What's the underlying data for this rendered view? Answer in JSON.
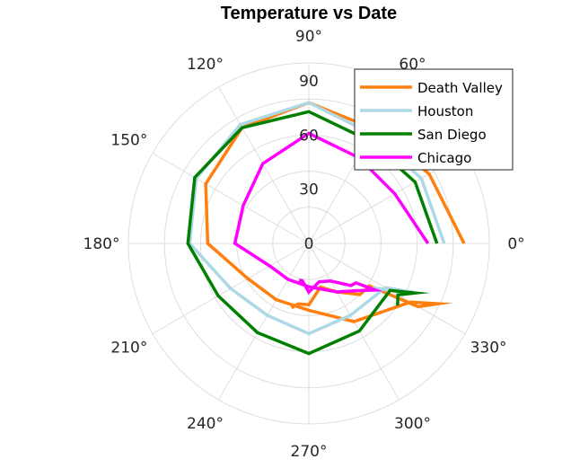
{
  "chart_data": {
    "type": "line",
    "subtype": "polar",
    "title": "Temperature vs Date",
    "r_range": [
      0,
      100
    ],
    "r_ticks": [
      "0",
      "30",
      "60",
      "90"
    ],
    "theta_ticks": [
      "0°",
      "30°",
      "60°",
      "90°",
      "120°",
      "150°",
      "180°",
      "210°",
      "240°",
      "270°",
      "300°",
      "330°"
    ],
    "theta_unit": "degrees",
    "grid": true,
    "legend_position": "top-right",
    "series": [
      {
        "name": "Death Valley",
        "color": "#ff7f0e",
        "points": [
          [
            0,
            86
          ],
          [
            30,
            77
          ],
          [
            60,
            73
          ],
          [
            90,
            78
          ],
          [
            120,
            74
          ],
          [
            150,
            66
          ],
          [
            180,
            56
          ],
          [
            210,
            39
          ],
          [
            240,
            36
          ],
          [
            270,
            37
          ],
          [
            300,
            50
          ],
          [
            330,
            65
          ],
          [
            335,
            79
          ],
          [
            330,
            70
          ],
          [
            325,
            41
          ],
          [
            315,
            40
          ],
          [
            300,
            31
          ],
          [
            285,
            25
          ],
          [
            270,
            34
          ],
          [
            260,
            34
          ],
          [
            255,
            37
          ]
        ]
      },
      {
        "name": "Houston",
        "color": "#add8e6",
        "points": [
          [
            0,
            75
          ],
          [
            30,
            72
          ],
          [
            60,
            70
          ],
          [
            90,
            78
          ],
          [
            120,
            76
          ],
          [
            150,
            72
          ],
          [
            180,
            66
          ],
          [
            210,
            50
          ],
          [
            240,
            46
          ],
          [
            270,
            50
          ],
          [
            300,
            46
          ],
          [
            330,
            49
          ],
          [
            335,
            64
          ],
          [
            325,
            43
          ]
        ]
      },
      {
        "name": "San Diego",
        "color": "#008000",
        "points": [
          [
            0,
            71
          ],
          [
            30,
            68
          ],
          [
            60,
            66
          ],
          [
            90,
            73
          ],
          [
            120,
            74
          ],
          [
            150,
            73
          ],
          [
            180,
            67
          ],
          [
            210,
            58
          ],
          [
            240,
            57
          ],
          [
            270,
            61
          ],
          [
            300,
            56
          ],
          [
            330,
            52
          ],
          [
            335,
            65
          ],
          [
            330,
            57
          ],
          [
            325,
            60
          ]
        ]
      },
      {
        "name": "Chicago",
        "color": "#ff00ff",
        "points": [
          [
            0,
            66
          ],
          [
            30,
            55
          ],
          [
            60,
            55
          ],
          [
            90,
            61
          ],
          [
            120,
            51
          ],
          [
            150,
            42
          ],
          [
            180,
            41
          ],
          [
            210,
            25
          ],
          [
            240,
            23
          ],
          [
            270,
            24
          ],
          [
            300,
            31
          ],
          [
            315,
            37
          ],
          [
            325,
            45
          ],
          [
            320,
            34
          ],
          [
            315,
            33
          ],
          [
            300,
            24
          ],
          [
            285,
            22
          ],
          [
            270,
            27
          ],
          [
            260,
            21
          ],
          [
            255,
            21
          ]
        ]
      }
    ]
  }
}
